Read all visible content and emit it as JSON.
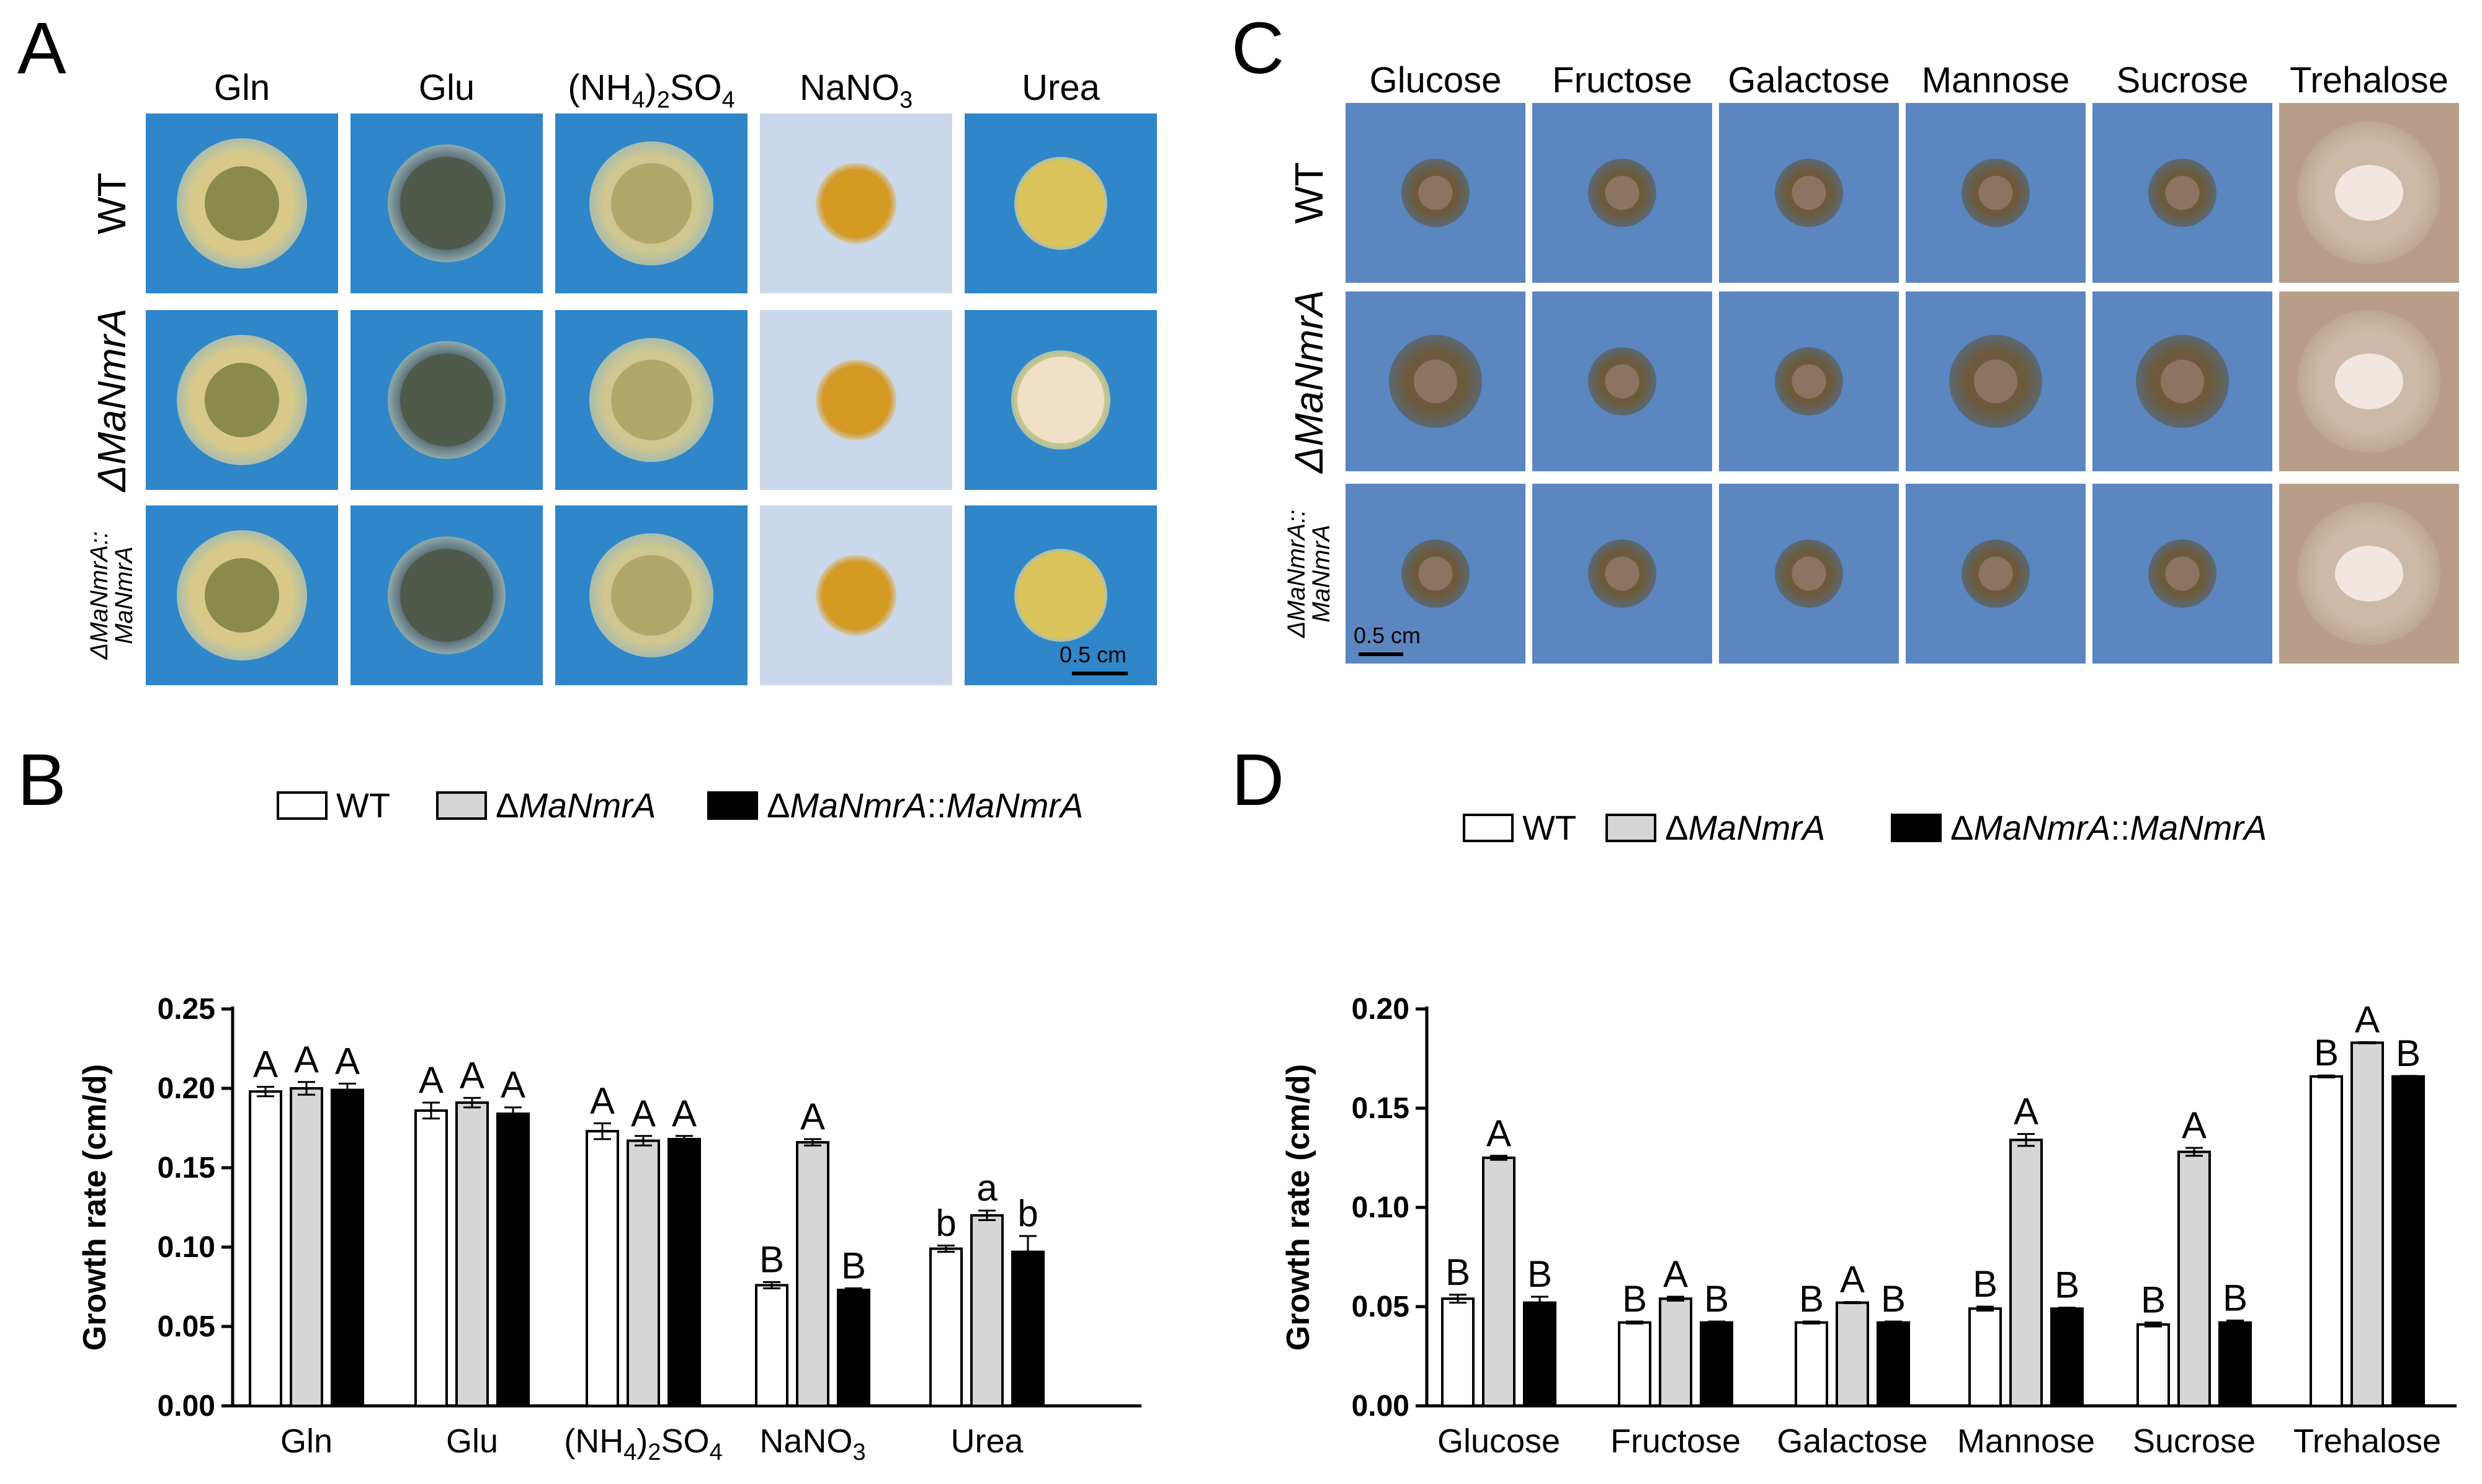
{
  "panels": {
    "a_letter": "A",
    "b_letter": "B",
    "c_letter": "C",
    "d_letter": "D"
  },
  "panel_a": {
    "columns": [
      "Gln",
      "Glu",
      "(NH4)2SO4",
      "NaNO3",
      "Urea"
    ],
    "column_html": [
      "Gln",
      "Glu",
      "(NH<sub>4</sub>)<sub>2</sub>SO<sub>4</sub>",
      "NaNO<sub>3</sub>",
      "Urea"
    ],
    "rows": [
      "WT",
      "ΔMaNmrA",
      "ΔMaNmrA::MaNmrA"
    ],
    "row_line1": [
      "WT",
      "ΔMaNmrA",
      "ΔMaNmrA::"
    ],
    "row_line2": [
      "",
      "",
      "MaNmrA"
    ],
    "scale_bar": "0.5 cm",
    "colors": {
      "plate_blue": "#2f86c9",
      "plate_pale": "#c9d8ea",
      "colony_yellow": "#d9c66e",
      "colony_olive": "#7d7a4a"
    }
  },
  "panel_c": {
    "columns": [
      "Glucose",
      "Fructose",
      "Galactose",
      "Mannose",
      "Sucrose",
      "Trehalose"
    ],
    "rows": [
      "WT",
      "ΔMaNmrA",
      "ΔMaNmrA::MaNmrA"
    ],
    "row_line1": [
      "WT",
      "ΔMaNmrA",
      "ΔMaNmrA::"
    ],
    "row_line2": [
      "",
      "",
      "MaNmrA"
    ],
    "scale_bar": "0.5 cm",
    "colors": {
      "plate_blue": "#5b86c0",
      "colony_brown": "#7d6a52",
      "trehalose_bg": "#b89e8a"
    }
  },
  "chart_data": [
    {
      "panel": "B",
      "type": "bar",
      "categories": [
        "Gln",
        "Glu",
        "(NH4)2SO4",
        "NaNO3",
        "Urea"
      ],
      "category_html": [
        "Gln",
        "Glu",
        "(NH<tspan dy='12' font-size='38'>4</tspan><tspan dy='-12'>)</tspan><tspan dy='12' font-size='38'>2</tspan><tspan dy='-12'>SO</tspan><tspan dy='12' font-size='38'>4</tspan>",
        "NaNO<tspan dy='12' font-size='38'>3</tspan>",
        "Urea"
      ],
      "ylabel": "Growth rate (cm/d)",
      "ylim": [
        0,
        0.25
      ],
      "yticks": [
        "0.00",
        "0.05",
        "0.10",
        "0.15",
        "0.20",
        "0.25"
      ],
      "ytick_values": [
        0,
        0.05,
        0.1,
        0.15,
        0.2,
        0.25
      ],
      "legend": [
        "WT",
        "ΔMaNmrA",
        "ΔMaNmrA::MaNmrA"
      ],
      "series": [
        {
          "name": "WT",
          "values": [
            0.198,
            0.186,
            0.173,
            0.076,
            0.099
          ],
          "errors": [
            0.003,
            0.005,
            0.005,
            0.002,
            0.002
          ],
          "letters": [
            "A",
            "A",
            "A",
            "B",
            "b"
          ],
          "fill": "#ffffff"
        },
        {
          "name": "ΔMaNmrA",
          "values": [
            0.2,
            0.191,
            0.167,
            0.166,
            0.12
          ],
          "errors": [
            0.004,
            0.003,
            0.003,
            0.002,
            0.003
          ],
          "letters": [
            "A",
            "A",
            "A",
            "A",
            "a"
          ],
          "fill": "#d6d6d6"
        },
        {
          "name": "ΔMaNmrA::MaNmrA",
          "values": [
            0.199,
            0.184,
            0.168,
            0.073,
            0.097
          ],
          "errors": [
            0.004,
            0.004,
            0.002,
            0.001,
            0.01
          ],
          "letters": [
            "A",
            "A",
            "A",
            "B",
            "b"
          ],
          "fill": "#000000"
        }
      ]
    },
    {
      "panel": "D",
      "type": "bar",
      "categories": [
        "Glucose",
        "Fructose",
        "Galactose",
        "Mannose",
        "Sucrose",
        "Trehalose"
      ],
      "category_html": [
        "Glucose",
        "Fructose",
        "Galactose",
        "Mannose",
        "Sucrose",
        "Trehalose"
      ],
      "ylabel": "Growth rate (cm/d)",
      "ylim": [
        0,
        0.2
      ],
      "yticks": [
        "0.00",
        "0.05",
        "0.10",
        "0.15",
        "0.20"
      ],
      "ytick_values": [
        0,
        0.05,
        0.1,
        0.15,
        0.2
      ],
      "legend": [
        "WT",
        "ΔMaNmrA",
        "ΔMaNmrA::MaNmrA"
      ],
      "series": [
        {
          "name": "WT",
          "values": [
            0.054,
            0.042,
            0.042,
            0.049,
            0.041,
            0.166
          ],
          "errors": [
            0.002,
            0.0005,
            0.0005,
            0.001,
            0.001,
            0.0005
          ],
          "letters": [
            "B",
            "B",
            "B",
            "B",
            "B",
            "B"
          ],
          "fill": "#ffffff"
        },
        {
          "name": "ΔMaNmrA",
          "values": [
            0.125,
            0.054,
            0.052,
            0.134,
            0.128,
            0.183
          ],
          "errors": [
            0.001,
            0.001,
            0.0003,
            0.003,
            0.002,
            0.0003
          ],
          "letters": [
            "A",
            "A",
            "A",
            "A",
            "A",
            "A"
          ],
          "fill": "#d6d6d6"
        },
        {
          "name": "ΔMaNmrA::MaNmrA",
          "values": [
            0.052,
            0.042,
            0.042,
            0.049,
            0.042,
            0.166
          ],
          "errors": [
            0.003,
            0.0005,
            0.0005,
            0.0005,
            0.001,
            0.0003
          ],
          "letters": [
            "B",
            "B",
            "B",
            "B",
            "B",
            "B"
          ],
          "fill": "#000000"
        }
      ]
    }
  ]
}
